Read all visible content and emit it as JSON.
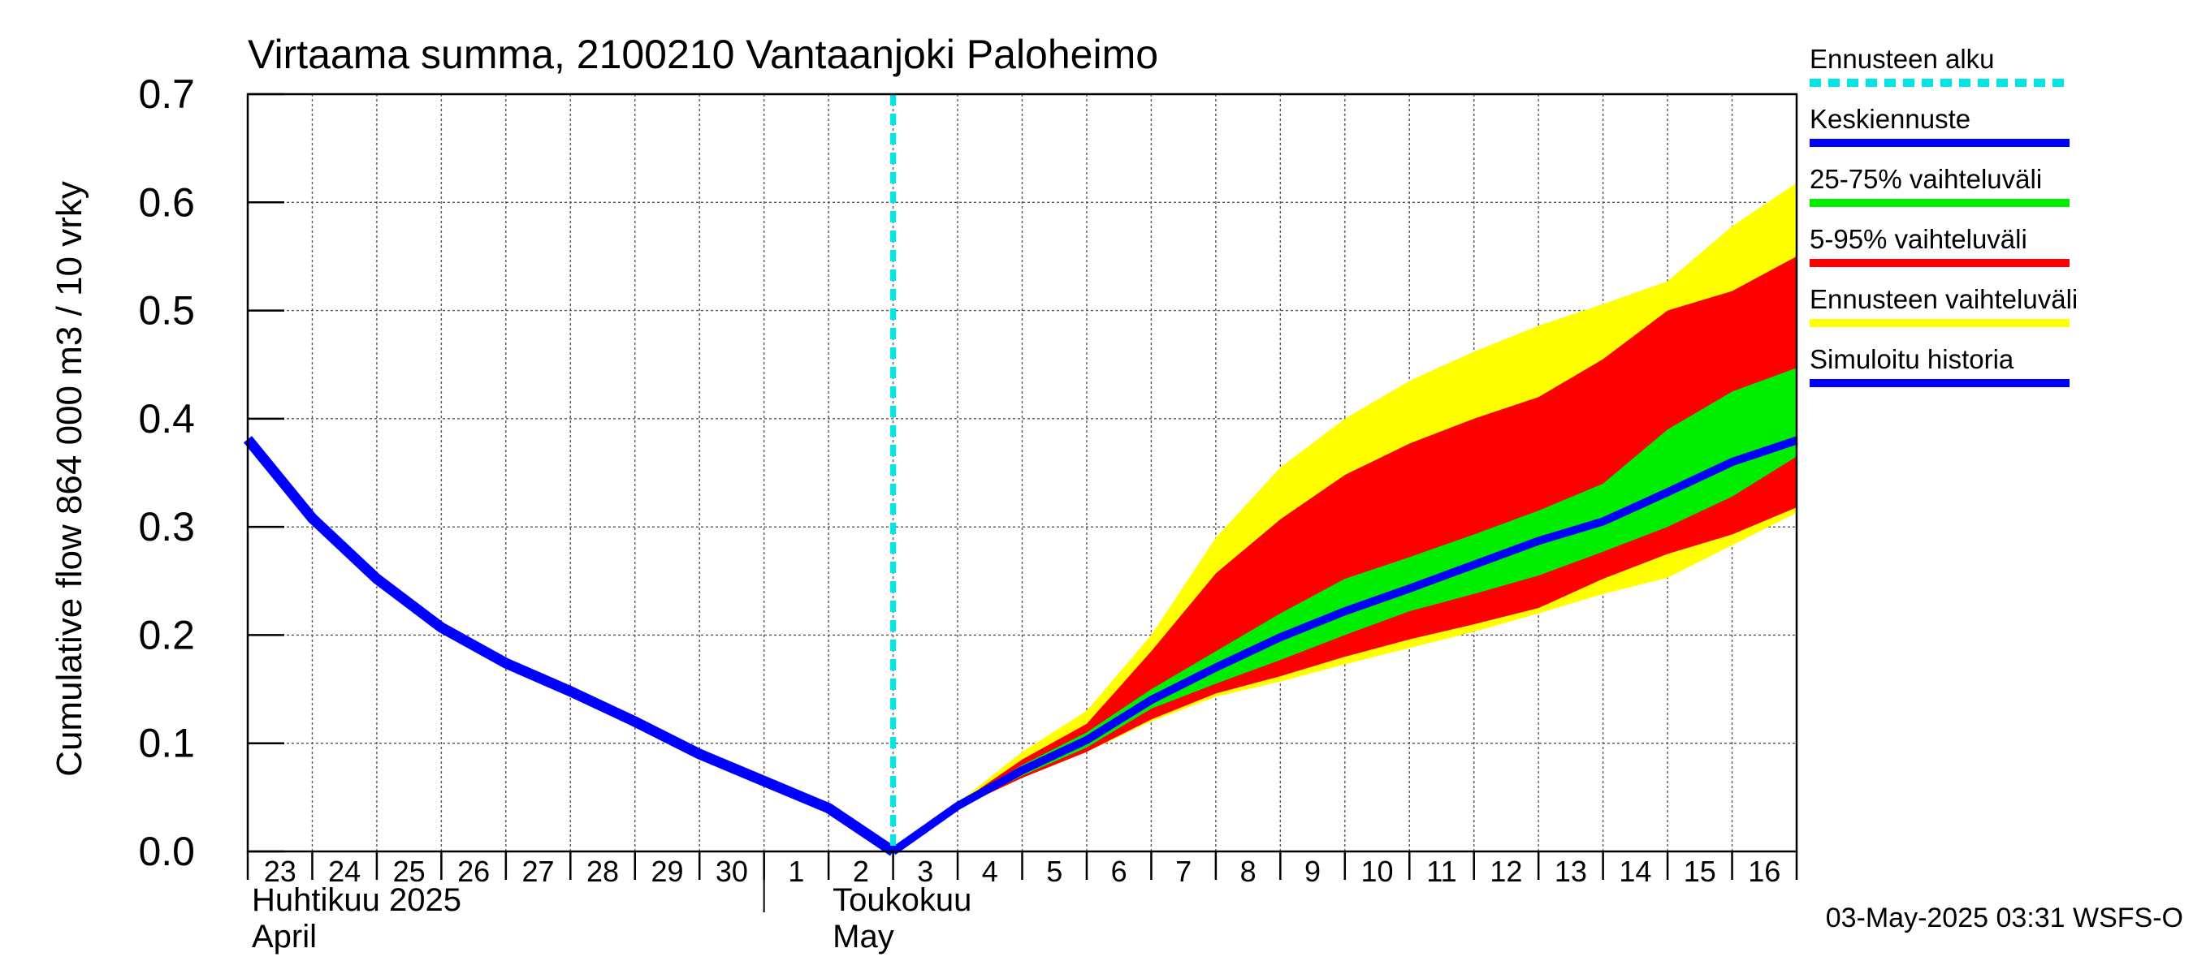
{
  "chart_data": {
    "type": "area",
    "title": "Virtaama summa, 2100210 Vantaanjoki Paloheimo",
    "ylabel": "Cumulative flow    864 000 m3 / 10 vrky",
    "ylim": [
      0,
      0.7
    ],
    "yticks": [
      "0.0",
      "0.1",
      "0.2",
      "0.3",
      "0.4",
      "0.5",
      "0.6",
      "0.7"
    ],
    "grid": true,
    "x": [
      "23",
      "24",
      "25",
      "26",
      "27",
      "28",
      "29",
      "30",
      "1",
      "2",
      "3",
      "4",
      "5",
      "6",
      "7",
      "8",
      "9",
      "10",
      "11",
      "12",
      "13",
      "14",
      "15",
      "16"
    ],
    "x_end": "17",
    "month_labels": [
      {
        "line1": "Huhtikuu  2025",
        "line2": "April",
        "at": "23"
      },
      {
        "line1": "Toukokuu",
        "line2": "May",
        "at": "2"
      }
    ],
    "month_divider_at": "1",
    "forecast_start": "3",
    "history": {
      "name": "Simuloitu historia",
      "color": "#0000ff",
      "points": [
        [
          "23",
          0.381
        ],
        [
          "24",
          0.308
        ],
        [
          "25",
          0.252
        ],
        [
          "26",
          0.207
        ],
        [
          "27",
          0.174
        ],
        [
          "28",
          0.148
        ],
        [
          "29",
          0.12
        ],
        [
          "30",
          0.09
        ],
        [
          "1",
          0.065
        ],
        [
          "2",
          0.04
        ],
        [
          "3",
          0.0
        ]
      ]
    },
    "forecast_x": [
      "3",
      "4",
      "5",
      "6",
      "7",
      "8",
      "9",
      "10",
      "11",
      "12",
      "13",
      "14",
      "15",
      "16",
      "17"
    ],
    "bands": [
      {
        "name": "Ennusteen vaihteluväli",
        "color": "#ffff00",
        "upper": [
          0.0,
          0.045,
          0.092,
          0.13,
          0.2,
          0.29,
          0.355,
          0.4,
          0.435,
          0.462,
          0.486,
          0.506,
          0.527,
          0.578,
          0.618
        ],
        "lower": [
          0.0,
          0.04,
          0.068,
          0.092,
          0.12,
          0.143,
          0.157,
          0.173,
          0.188,
          0.203,
          0.22,
          0.238,
          0.253,
          0.283,
          0.313
        ]
      },
      {
        "name": "5-95% vaihteluväli",
        "color": "#ff0000",
        "upper": [
          0.0,
          0.044,
          0.085,
          0.118,
          0.185,
          0.257,
          0.307,
          0.348,
          0.377,
          0.4,
          0.42,
          0.455,
          0.5,
          0.518,
          0.55
        ],
        "lower": [
          0.0,
          0.04,
          0.068,
          0.092,
          0.122,
          0.146,
          0.162,
          0.18,
          0.196,
          0.21,
          0.225,
          0.252,
          0.275,
          0.293,
          0.318
        ]
      },
      {
        "name": "25-75% vaihteluväli",
        "color": "#00ee00",
        "upper": [
          0.0,
          0.043,
          0.08,
          0.11,
          0.15,
          0.185,
          0.22,
          0.252,
          0.272,
          0.293,
          0.315,
          0.34,
          0.39,
          0.425,
          0.447
        ],
        "lower": [
          0.0,
          0.04,
          0.07,
          0.096,
          0.132,
          0.155,
          0.177,
          0.2,
          0.222,
          0.238,
          0.255,
          0.277,
          0.3,
          0.328,
          0.365
        ]
      }
    ],
    "median": {
      "name": "Keskiennuste",
      "color": "#0000ff",
      "values": [
        0.0,
        0.042,
        0.075,
        0.103,
        0.14,
        0.17,
        0.198,
        0.222,
        0.243,
        0.265,
        0.287,
        0.305,
        0.332,
        0.36,
        0.38
      ]
    },
    "legend": [
      {
        "label": "Ennusteen alku",
        "color": "#00e5e5",
        "style": "dashed"
      },
      {
        "label": "Keskiennuste",
        "color": "#0000ff",
        "style": "solid"
      },
      {
        "label": "25-75% vaihteluväli",
        "color": "#00ee00",
        "style": "solid"
      },
      {
        "label": "5-95% vaihteluväli",
        "color": "#ff0000",
        "style": "solid"
      },
      {
        "label": "Ennusteen vaihteluväli",
        "color": "#ffff00",
        "style": "solid"
      },
      {
        "label": "Simuloitu historia",
        "color": "#0000ff",
        "style": "solid"
      }
    ],
    "legend_position": "right",
    "footer": "03-May-2025 03:31 WSFS-O"
  }
}
